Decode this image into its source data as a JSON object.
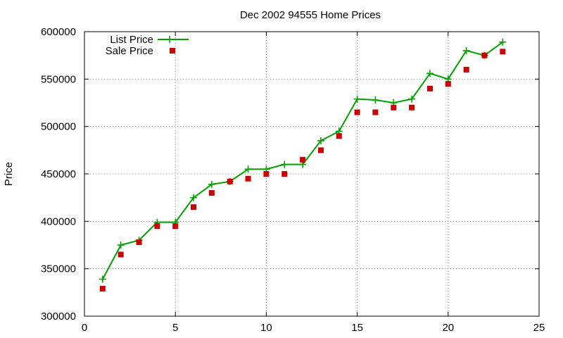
{
  "chart_data": {
    "type": "line",
    "title": "Dec 2002 94555 Home Prices",
    "xlabel": "",
    "ylabel": "Price",
    "xlim": [
      0,
      25
    ],
    "ylim": [
      300000,
      600000
    ],
    "xticks": [
      0,
      5,
      10,
      15,
      20,
      25
    ],
    "yticks": [
      300000,
      350000,
      400000,
      450000,
      500000,
      550000,
      600000
    ],
    "grid": true,
    "legend_position": "top-left",
    "x": [
      1,
      2,
      3,
      4,
      5,
      6,
      7,
      8,
      9,
      10,
      11,
      12,
      13,
      14,
      15,
      16,
      17,
      18,
      19,
      20,
      21,
      22,
      23
    ],
    "series": [
      {
        "name": "List Price",
        "style": "line-with-plus-markers",
        "color": "#00a000",
        "values": [
          339000,
          375000,
          380000,
          399000,
          399000,
          425000,
          439000,
          442000,
          455000,
          455000,
          460000,
          460000,
          485000,
          495000,
          529000,
          528000,
          525000,
          529000,
          556000,
          550000,
          580000,
          575000,
          589000
        ]
      },
      {
        "name": "Sale Price",
        "style": "square-markers",
        "color": "#cc0000",
        "values": [
          329000,
          365000,
          378000,
          395000,
          395000,
          415000,
          430000,
          442000,
          445000,
          450000,
          450000,
          465000,
          475000,
          490000,
          515000,
          515000,
          520000,
          520000,
          540000,
          545000,
          560000,
          575000,
          579000
        ]
      }
    ]
  }
}
